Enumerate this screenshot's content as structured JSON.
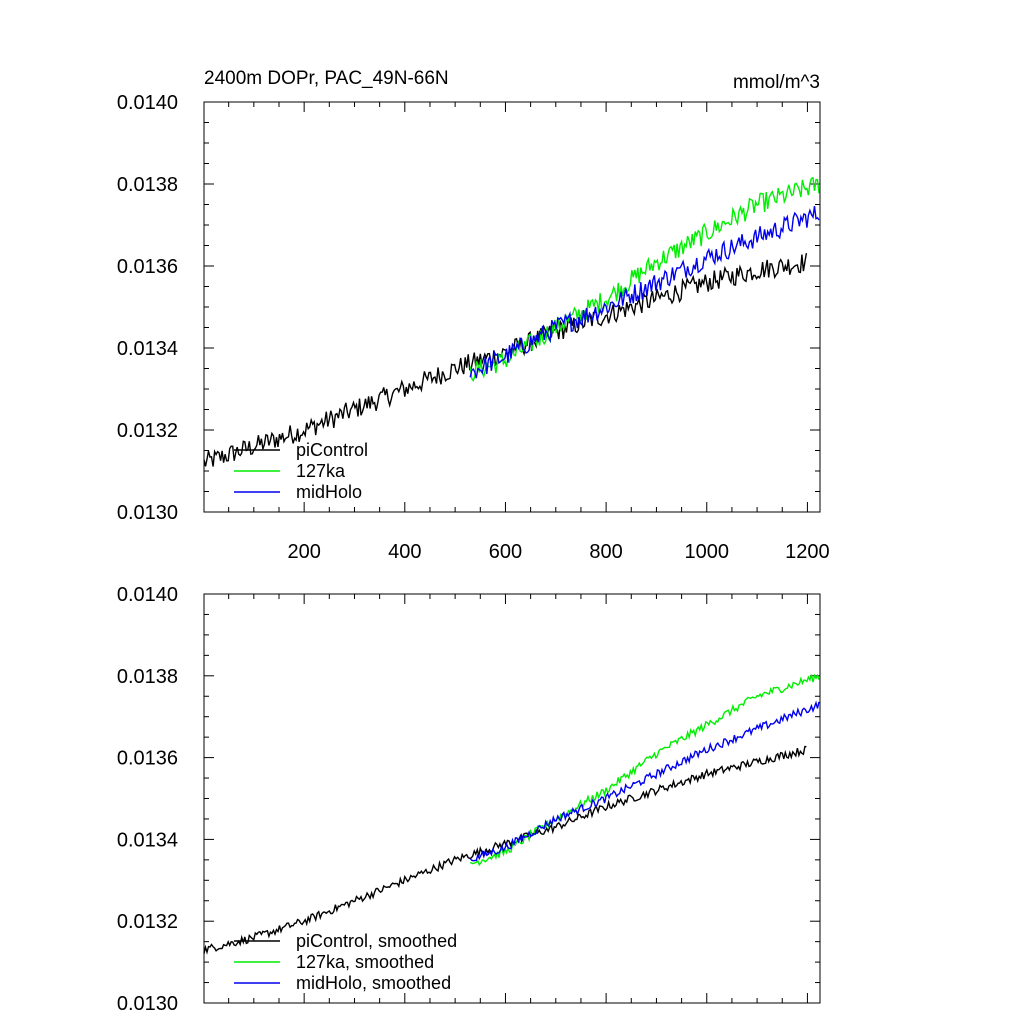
{
  "figure": {
    "title_left": "2400m DOPr, PAC_49N-66N",
    "title_right": "mmol/m^3"
  },
  "colors": {
    "piControl": "#000000",
    "127ka": "#00ee00",
    "midHolo": "#0000ee"
  },
  "chart_data": [
    {
      "type": "line",
      "panel": "top",
      "xlim": [
        1,
        1225
      ],
      "ylim": [
        0.013,
        0.014
      ],
      "xticks": [
        200,
        400,
        600,
        800,
        1000,
        1200
      ],
      "xtick_labels": [
        "200",
        "400",
        "600",
        "800",
        "1000",
        "1200"
      ],
      "yticks": [
        0.013,
        0.0132,
        0.0134,
        0.0136,
        0.0138,
        0.014
      ],
      "ytick_labels": [
        "0.0130",
        "0.0132",
        "0.0134",
        "0.0136",
        "0.0138",
        "0.0140"
      ],
      "legend": [
        "piControl",
        "127ka",
        "midHolo"
      ],
      "legend_position": "bottom-left",
      "noise": 5e-05,
      "series": [
        {
          "name": "piControl",
          "color_key": "piControl",
          "x": [
            1,
            100,
            200,
            300,
            400,
            500,
            600,
            700,
            800,
            900,
            1000,
            1100,
            1200
          ],
          "y": [
            0.01312,
            0.01316,
            0.0132,
            0.01325,
            0.0133,
            0.01335,
            0.01339,
            0.01344,
            0.01348,
            0.01352,
            0.01356,
            0.01359,
            0.01361
          ]
        },
        {
          "name": "127ka",
          "color_key": "127ka",
          "x": [
            530,
            600,
            700,
            800,
            900,
            1000,
            1100,
            1225
          ],
          "y": [
            0.01334,
            0.01337,
            0.01345,
            0.01352,
            0.01361,
            0.01368,
            0.01375,
            0.0138
          ]
        },
        {
          "name": "midHolo",
          "color_key": "midHolo",
          "x": [
            530,
            600,
            700,
            800,
            900,
            1000,
            1100,
            1225
          ],
          "y": [
            0.01334,
            0.01338,
            0.01345,
            0.0135,
            0.01356,
            0.01362,
            0.01367,
            0.01373
          ]
        }
      ]
    },
    {
      "type": "line",
      "panel": "bottom",
      "xlim": [
        1,
        1225
      ],
      "ylim": [
        0.013,
        0.014
      ],
      "xticks": [
        200,
        400,
        600,
        800,
        1000,
        1200
      ],
      "yticks": [
        0.013,
        0.0132,
        0.0134,
        0.0136,
        0.0138,
        0.014
      ],
      "ytick_labels": [
        "0.0130",
        "0.0132",
        "0.0134",
        "0.0136",
        "0.0138",
        "0.0140"
      ],
      "legend": [
        "piControl, smoothed",
        "127ka, smoothed",
        "midHolo, smoothed"
      ],
      "legend_position": "bottom-left",
      "noise": 2e-05,
      "series": [
        {
          "name": "piControl, smoothed",
          "color_key": "piControl",
          "x": [
            1,
            100,
            200,
            300,
            400,
            500,
            600,
            700,
            800,
            900,
            1000,
            1100,
            1200
          ],
          "y": [
            0.01313,
            0.01316,
            0.0132,
            0.01325,
            0.0133,
            0.01335,
            0.01339,
            0.01343,
            0.01348,
            0.01352,
            0.01356,
            0.01359,
            0.01362
          ]
        },
        {
          "name": "127ka, smoothed",
          "color_key": "127ka",
          "x": [
            530,
            600,
            700,
            800,
            900,
            1000,
            1100,
            1225
          ],
          "y": [
            0.01334,
            0.01337,
            0.01345,
            0.01352,
            0.01361,
            0.01368,
            0.01375,
            0.0138
          ]
        },
        {
          "name": "midHolo, smoothed",
          "color_key": "midHolo",
          "x": [
            530,
            600,
            700,
            800,
            900,
            1000,
            1100,
            1225
          ],
          "y": [
            0.01335,
            0.01338,
            0.01345,
            0.0135,
            0.01356,
            0.01362,
            0.01367,
            0.01373
          ]
        }
      ]
    }
  ]
}
